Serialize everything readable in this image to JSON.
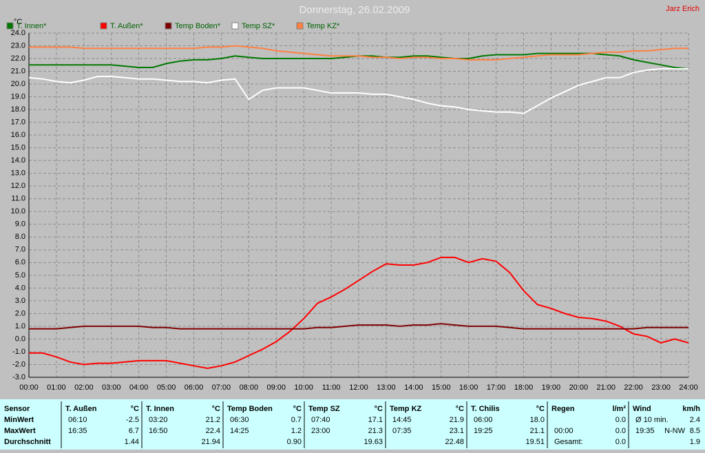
{
  "chart_data": {
    "type": "line",
    "title": "Donnerstag, 26.02.2009",
    "annotation": "Jarz Erich",
    "y_label": "°C",
    "grid": true,
    "x": [
      0,
      0.5,
      1,
      1.5,
      2,
      2.5,
      3,
      3.5,
      4,
      4.5,
      5,
      5.5,
      6,
      6.5,
      7,
      7.5,
      8,
      8.5,
      9,
      9.5,
      10,
      10.5,
      11,
      11.5,
      12,
      12.5,
      13,
      13.5,
      14,
      14.5,
      15,
      15.5,
      16,
      16.5,
      17,
      17.5,
      18,
      18.5,
      19,
      19.5,
      20,
      20.5,
      21,
      21.5,
      22,
      22.5,
      23,
      23.5,
      24
    ],
    "xlim": [
      0,
      24
    ],
    "xticks": [
      {
        "value": 0,
        "label": "00:00"
      },
      {
        "value": 1,
        "label": "01:00"
      },
      {
        "value": 2,
        "label": "02:00"
      },
      {
        "value": 3,
        "label": "03:00"
      },
      {
        "value": 4,
        "label": "04:00"
      },
      {
        "value": 5,
        "label": "05:00"
      },
      {
        "value": 6,
        "label": "06:00"
      },
      {
        "value": 7,
        "label": "07:00"
      },
      {
        "value": 8,
        "label": "08:00"
      },
      {
        "value": 9,
        "label": "09:00"
      },
      {
        "value": 10,
        "label": "10:00"
      },
      {
        "value": 11,
        "label": "11:00"
      },
      {
        "value": 12,
        "label": "12:00"
      },
      {
        "value": 13,
        "label": "13:00"
      },
      {
        "value": 14,
        "label": "14:00"
      },
      {
        "value": 15,
        "label": "15:00"
      },
      {
        "value": 16,
        "label": "16:00"
      },
      {
        "value": 17,
        "label": "17:00"
      },
      {
        "value": 18,
        "label": "18:00"
      },
      {
        "value": 19,
        "label": "19:00"
      },
      {
        "value": 20,
        "label": "20:00"
      },
      {
        "value": 21,
        "label": "21:00"
      },
      {
        "value": 22,
        "label": "22:00"
      },
      {
        "value": 23,
        "label": "23:00"
      },
      {
        "value": 24,
        "label": "24:00"
      }
    ],
    "ylim": [
      -3,
      24
    ],
    "yticks": [
      {
        "value": -3,
        "label": "-3.0"
      },
      {
        "value": -2,
        "label": "-2.0"
      },
      {
        "value": -1,
        "label": "-1.0"
      },
      {
        "value": 0,
        "label": "0.0"
      },
      {
        "value": 1,
        "label": "1.0"
      },
      {
        "value": 2,
        "label": "2.0"
      },
      {
        "value": 3,
        "label": "3.0"
      },
      {
        "value": 4,
        "label": "4.0"
      },
      {
        "value": 5,
        "label": "5.0"
      },
      {
        "value": 6,
        "label": "6.0"
      },
      {
        "value": 7,
        "label": "7.0"
      },
      {
        "value": 8,
        "label": "8.0"
      },
      {
        "value": 9,
        "label": "9.0"
      },
      {
        "value": 10,
        "label": "10.0"
      },
      {
        "value": 11,
        "label": "11.0"
      },
      {
        "value": 12,
        "label": "12.0"
      },
      {
        "value": 13,
        "label": "13.0"
      },
      {
        "value": 14,
        "label": "14.0"
      },
      {
        "value": 15,
        "label": "15.0"
      },
      {
        "value": 16,
        "label": "16.0"
      },
      {
        "value": 17,
        "label": "17.0"
      },
      {
        "value": 18,
        "label": "18.0"
      },
      {
        "value": 19,
        "label": "19.0"
      },
      {
        "value": 20,
        "label": "20.0"
      },
      {
        "value": 21,
        "label": "21.0"
      },
      {
        "value": 22,
        "label": "22.0"
      },
      {
        "value": 23,
        "label": "23.0"
      },
      {
        "value": 24,
        "label": "24.0"
      }
    ],
    "series": [
      {
        "name": "T. Innen*",
        "color": "#007800",
        "values": [
          21.5,
          21.5,
          21.5,
          21.5,
          21.5,
          21.5,
          21.5,
          21.4,
          21.3,
          21.3,
          21.6,
          21.8,
          21.9,
          21.9,
          22.0,
          22.2,
          22.1,
          22.0,
          22.0,
          22.0,
          22.0,
          22.0,
          22.0,
          22.1,
          22.2,
          22.2,
          22.1,
          22.1,
          22.2,
          22.2,
          22.1,
          22.0,
          22.0,
          22.2,
          22.3,
          22.3,
          22.3,
          22.4,
          22.4,
          22.4,
          22.4,
          22.4,
          22.3,
          22.2,
          21.9,
          21.7,
          21.5,
          21.3,
          21.2
        ]
      },
      {
        "name": "T. Außen*",
        "color": "#ff0000",
        "values": [
          -1.1,
          -1.1,
          -1.4,
          -1.8,
          -2.0,
          -1.9,
          -1.9,
          -1.8,
          -1.7,
          -1.7,
          -1.7,
          -1.9,
          -2.1,
          -2.3,
          -2.1,
          -1.8,
          -1.3,
          -0.8,
          -0.2,
          0.6,
          1.6,
          2.8,
          3.3,
          3.9,
          4.6,
          5.3,
          5.9,
          5.8,
          5.8,
          6.0,
          6.4,
          6.4,
          6.0,
          6.3,
          6.1,
          5.2,
          3.8,
          2.7,
          2.4,
          2.0,
          1.7,
          1.6,
          1.4,
          1.0,
          0.4,
          0.2,
          -0.3,
          0.0,
          -0.3
        ]
      },
      {
        "name": "Temp Boden*",
        "color": "#800000",
        "values": [
          0.8,
          0.8,
          0.8,
          0.9,
          1.0,
          1.0,
          1.0,
          1.0,
          1.0,
          0.9,
          0.9,
          0.8,
          0.8,
          0.8,
          0.8,
          0.8,
          0.8,
          0.8,
          0.8,
          0.8,
          0.8,
          0.9,
          0.9,
          1.0,
          1.1,
          1.1,
          1.1,
          1.0,
          1.1,
          1.1,
          1.2,
          1.1,
          1.0,
          1.0,
          1.0,
          0.9,
          0.8,
          0.8,
          0.8,
          0.8,
          0.8,
          0.8,
          0.8,
          0.8,
          0.8,
          0.9,
          0.9,
          0.9,
          0.9
        ]
      },
      {
        "name": "Temp SZ*",
        "color": "#ffffff",
        "values": [
          20.5,
          20.4,
          20.2,
          20.1,
          20.3,
          20.6,
          20.6,
          20.5,
          20.4,
          20.4,
          20.3,
          20.2,
          20.2,
          20.1,
          20.3,
          20.4,
          18.8,
          19.5,
          19.7,
          19.7,
          19.7,
          19.5,
          19.3,
          19.3,
          19.3,
          19.2,
          19.2,
          19.0,
          18.8,
          18.5,
          18.3,
          18.2,
          18.0,
          17.9,
          17.8,
          17.8,
          17.7,
          18.3,
          18.9,
          19.4,
          19.9,
          20.2,
          20.5,
          20.5,
          20.9,
          21.1,
          21.2,
          21.2,
          21.2
        ]
      },
      {
        "name": "Temp KZ*",
        "color": "#ff8040",
        "values": [
          22.9,
          22.9,
          22.9,
          22.9,
          22.8,
          22.8,
          22.8,
          22.8,
          22.8,
          22.8,
          22.8,
          22.8,
          22.8,
          22.9,
          22.9,
          23.0,
          22.9,
          22.8,
          22.6,
          22.5,
          22.4,
          22.3,
          22.2,
          22.2,
          22.2,
          22.1,
          22.1,
          22.0,
          22.1,
          22.1,
          22.0,
          22.0,
          21.9,
          21.9,
          21.9,
          22.0,
          22.1,
          22.2,
          22.3,
          22.3,
          22.3,
          22.4,
          22.5,
          22.5,
          22.6,
          22.6,
          22.7,
          22.8,
          22.8
        ]
      }
    ]
  },
  "table": {
    "header": "Sensor",
    "row_labels": [
      "MinWert",
      "MaxWert",
      "Durchschnitt"
    ],
    "columns": [
      {
        "name": "T. Außen",
        "unit": "°C",
        "rows": [
          {
            "time": "06:10",
            "value": "-2.5"
          },
          {
            "time": "16:35",
            "value": "6.7"
          },
          {
            "value": "1.44"
          }
        ]
      },
      {
        "name": "T. Innen",
        "unit": "°C",
        "rows": [
          {
            "time": "03:20",
            "value": "21.2"
          },
          {
            "time": "16:50",
            "value": "22.4"
          },
          {
            "value": "21.94"
          }
        ]
      },
      {
        "name": "Temp Boden",
        "unit": "°C",
        "rows": [
          {
            "time": "06:30",
            "value": "0.7"
          },
          {
            "time": "14:25",
            "value": "1.2"
          },
          {
            "value": "0.90"
          }
        ]
      },
      {
        "name": "Temp SZ",
        "unit": "°C",
        "rows": [
          {
            "time": "07:40",
            "value": "17.1"
          },
          {
            "time": "23:00",
            "value": "21.3"
          },
          {
            "value": "19.63"
          }
        ]
      },
      {
        "name": "Temp KZ",
        "unit": "°C",
        "rows": [
          {
            "time": "14:45",
            "value": "21.9"
          },
          {
            "time": "07:35",
            "value": "23.1"
          },
          {
            "value": "22.48"
          }
        ]
      },
      {
        "name": "T. Chilis",
        "unit": "°C",
        "rows": [
          {
            "time": "06:00",
            "value": "18.0"
          },
          {
            "time": "19:25",
            "value": "21.1"
          },
          {
            "value": "19.51"
          }
        ]
      },
      {
        "name": "Regen",
        "unit": "l/m²",
        "rows": [
          {
            "value": "0.0"
          },
          {
            "time": "00:00",
            "value": "0.0"
          },
          {
            "time": "Gesamt:",
            "value": "0.0"
          }
        ]
      },
      {
        "name": "Wind",
        "unit": "km/h",
        "rows": [
          {
            "time": "Ø 10 min.",
            "value": "2.4"
          },
          {
            "time": "19:35",
            "dir": "N-NW",
            "value": "8.5"
          },
          {
            "value": "1.9"
          }
        ]
      }
    ]
  }
}
